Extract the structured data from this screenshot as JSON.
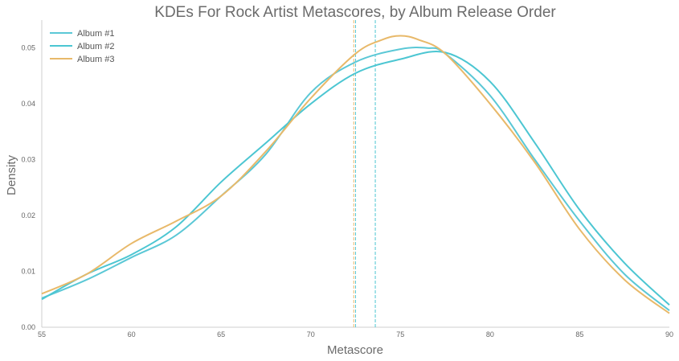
{
  "chart_data": {
    "type": "line",
    "title": "KDEs For Rock Artist Metascores, by Album Release Order",
    "xlabel": "Metascore",
    "ylabel": "Density",
    "xlim": [
      55,
      90
    ],
    "ylim": [
      0,
      0.055
    ],
    "x_ticks": [
      "55",
      "60",
      "65",
      "70",
      "75",
      "80",
      "85",
      "90"
    ],
    "y_ticks": [
      "0.00",
      "0.01",
      "0.02",
      "0.03",
      "0.04",
      "0.05"
    ],
    "grid": false,
    "legend_position": "top-left",
    "series": [
      {
        "name": "Album #1",
        "color": "#5bc8d6",
        "mean": 72.5,
        "x": [
          55,
          57.5,
          60,
          62.5,
          65,
          67.5,
          70,
          72.5,
          75,
          76.5,
          77.5,
          80,
          82.5,
          85,
          87.5,
          90
        ],
        "y": [
          0.0052,
          0.0085,
          0.0125,
          0.0165,
          0.0235,
          0.031,
          0.042,
          0.0475,
          0.0498,
          0.05,
          0.049,
          0.0415,
          0.03,
          0.019,
          0.0095,
          0.003
        ]
      },
      {
        "name": "Album #2",
        "color": "#4cc6d2",
        "mean": 73.6,
        "x": [
          55,
          57.5,
          60,
          62.5,
          65,
          67.5,
          70,
          72.5,
          75,
          77.5,
          80,
          82.5,
          85,
          87.5,
          90
        ],
        "y": [
          0.005,
          0.0095,
          0.013,
          0.018,
          0.026,
          0.033,
          0.04,
          0.0455,
          0.048,
          0.0492,
          0.044,
          0.033,
          0.021,
          0.0115,
          0.004
        ]
      },
      {
        "name": "Album #3",
        "color": "#e8b96a",
        "mean": 72.4,
        "x": [
          55,
          57.5,
          60,
          62.5,
          65,
          67.5,
          70,
          72.5,
          74,
          75,
          76,
          77.5,
          80,
          82.5,
          85,
          87.5,
          90
        ],
        "y": [
          0.006,
          0.0095,
          0.015,
          0.019,
          0.0235,
          0.0315,
          0.041,
          0.049,
          0.0515,
          0.0522,
          0.0515,
          0.049,
          0.04,
          0.0295,
          0.0175,
          0.0085,
          0.0025
        ]
      }
    ]
  }
}
